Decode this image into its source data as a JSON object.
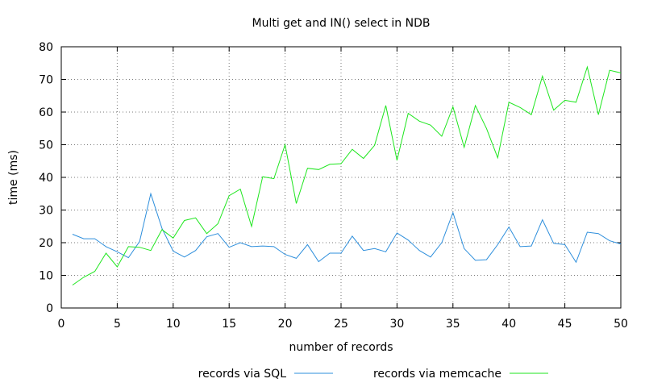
{
  "chart_data": {
    "type": "line",
    "title": "Multi get and IN() select in NDB",
    "xlabel": "number of records",
    "ylabel": "time (ms)",
    "xlim": [
      0,
      50
    ],
    "ylim": [
      0,
      80
    ],
    "x_ticks": [
      "0",
      "5",
      "10",
      "15",
      "20",
      "25",
      "30",
      "35",
      "40",
      "45",
      "50"
    ],
    "y_ticks": [
      "0",
      "10",
      "20",
      "30",
      "40",
      "50",
      "60",
      "70",
      "80"
    ],
    "grid": true,
    "legend_position": "bottom",
    "x": [
      1,
      2,
      3,
      4,
      5,
      6,
      7,
      8,
      9,
      10,
      11,
      12,
      13,
      14,
      15,
      16,
      17,
      18,
      19,
      20,
      21,
      22,
      23,
      24,
      25,
      26,
      27,
      28,
      29,
      30,
      31,
      32,
      33,
      34,
      35,
      36,
      37,
      38,
      39,
      40,
      41,
      42,
      43,
      44,
      45,
      46,
      47,
      48,
      49,
      50
    ],
    "series": [
      {
        "name": "records via SQL",
        "color": "#2e8fdc",
        "values": [
          22.6,
          21.2,
          21.2,
          18.8,
          17.2,
          15.4,
          20.4,
          35.0,
          24.4,
          17.4,
          15.6,
          17.6,
          21.8,
          22.8,
          18.6,
          20.0,
          18.8,
          19.0,
          18.8,
          16.4,
          15.2,
          19.4,
          14.2,
          16.8,
          16.8,
          22.0,
          17.6,
          18.2,
          17.2,
          23.0,
          20.8,
          17.6,
          15.6,
          20.0,
          29.2,
          18.2,
          14.6,
          14.8,
          19.4,
          24.8,
          18.8,
          19.0,
          27.0,
          19.8,
          19.4,
          14.0,
          23.2,
          22.8,
          20.6,
          19.6
        ]
      },
      {
        "name": "records via memcache",
        "color": "#1ee61e",
        "values": [
          7.0,
          9.4,
          11.2,
          16.8,
          12.6,
          18.8,
          18.6,
          17.6,
          24.0,
          21.4,
          26.8,
          27.6,
          22.8,
          25.8,
          34.4,
          36.4,
          25.0,
          40.2,
          39.6,
          50.0,
          32.0,
          42.8,
          42.4,
          44.0,
          44.2,
          48.6,
          45.8,
          49.8,
          62.0,
          45.2,
          59.6,
          57.2,
          56.0,
          52.6,
          61.6,
          49.2,
          62.0,
          55.0,
          46.0,
          63.0,
          61.4,
          59.2,
          71.0,
          60.6,
          63.6,
          63.0,
          73.8,
          59.2,
          72.8,
          72.0
        ]
      }
    ]
  }
}
